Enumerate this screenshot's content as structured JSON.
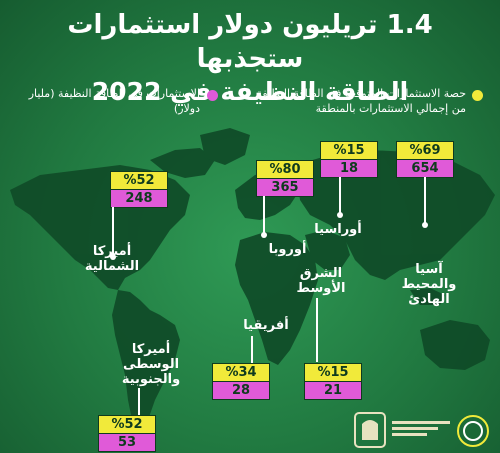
{
  "title": {
    "line1": "1.4 تريليون دولار استثمارات ستجذبها",
    "line2": "الطاقة النظيفة في 2022"
  },
  "legend": {
    "share": "حصة الاستثمارات المتوقعة في الطاقة النظيفة من إجمالي الاستثمارات بالمنطقة",
    "investment": "الاستثمارات في الطاقة النظيفة (مليار دولار)"
  },
  "colors": {
    "share": "#f1ea3a",
    "investment": "#e05ad8"
  },
  "regions": [
    {
      "name": "آسيا والمحيط الهادئ",
      "share": "%69",
      "value": "654"
    },
    {
      "name": "أوراسيا",
      "share": "%15",
      "value": "18"
    },
    {
      "name": "أوروبا",
      "share": "%80",
      "value": "365"
    },
    {
      "name": "أميركا الشمالية",
      "share": "%52",
      "value": "248"
    },
    {
      "name": "الشرق الأوسط",
      "share": "%15",
      "value": "21"
    },
    {
      "name": "أفريقيا",
      "share": "%34",
      "value": "28"
    },
    {
      "name": "أميركا الوسطى والجنوبية",
      "share": "%52",
      "value": "53"
    }
  ]
}
